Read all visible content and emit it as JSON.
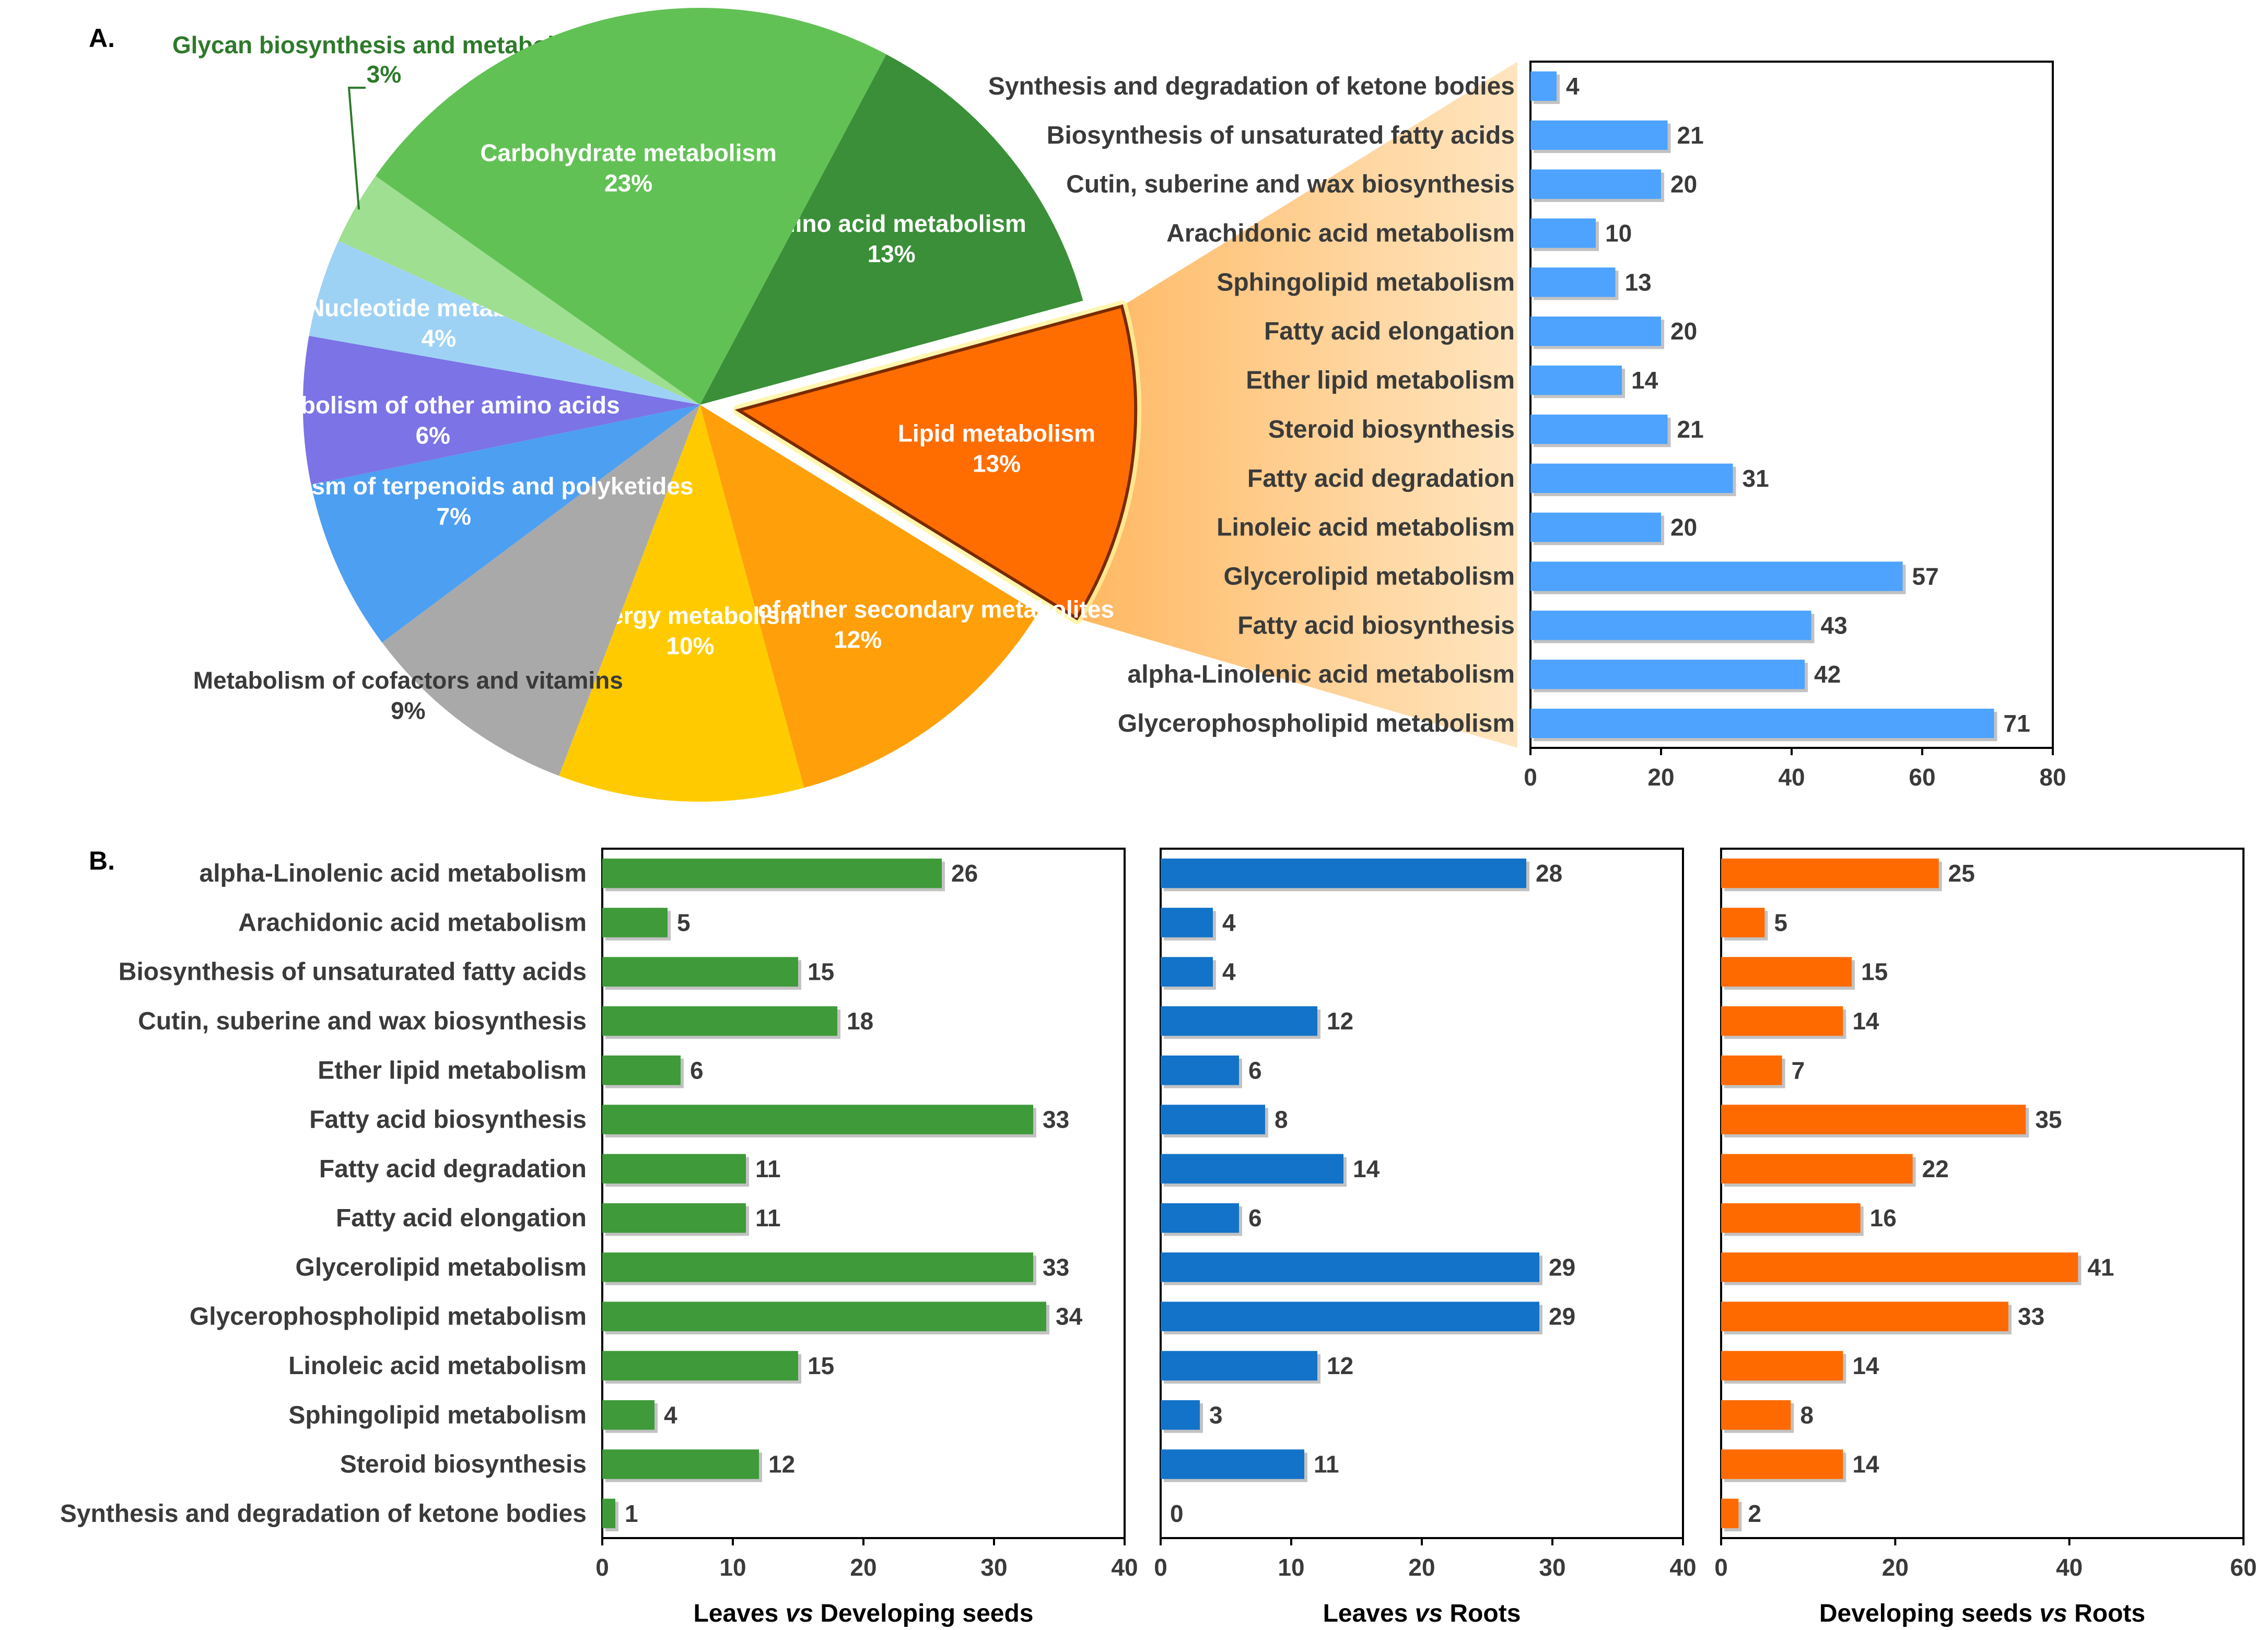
{
  "panel_labels": {
    "a": "A.",
    "b": "B."
  },
  "colors": {
    "green_dark": "#3a8f38",
    "green_mid": "#62c155",
    "green_light": "#9fdf91",
    "blue_light": "#9ed2f5",
    "purple": "#7b73e6",
    "blue_mid": "#4d9ff2",
    "gray": "#a9a9a9",
    "yellow": "#ffcb00",
    "orange_mid": "#ff9f0a",
    "orange_dark": "#ff6d00",
    "bar_blue_light": "#4da3ff",
    "bar_green": "#3f9a3a",
    "bar_blue": "#1273c9",
    "bar_orange": "#ff6a00",
    "text_dark": "#3a3a3a",
    "glycan_label": "#2e7a2b"
  },
  "chart_data": [
    {
      "id": "pie",
      "type": "pie",
      "title": "",
      "slices": [
        {
          "label": "Amino acid metabolism",
          "percent": "13%",
          "value": 13,
          "color": "#3a8f38",
          "text_color": "#ffffff"
        },
        {
          "label": "Lipid metabolism",
          "percent": "13%",
          "value": 13,
          "color": "#ff6d00",
          "text_color": "#ffffff",
          "exploded": true
        },
        {
          "label": "Biosynthesis of other secondary metabolites",
          "percent": "12%",
          "value": 12,
          "color": "#ff9f0a",
          "text_color": "#ffffff"
        },
        {
          "label": "Energy metabolism",
          "percent": "10%",
          "value": 10,
          "color": "#ffcb00",
          "text_color": "#ffffff"
        },
        {
          "label": "Metabolism of cofactors and vitamins",
          "percent": "9%",
          "value": 9,
          "color": "#a9a9a9",
          "text_color": "#3a3a3a"
        },
        {
          "label": "Metabolism of terpenoids and polyketides",
          "percent": "7%",
          "value": 7,
          "color": "#4d9ff2",
          "text_color": "#ffffff"
        },
        {
          "label": "Metabolism of other amino acids",
          "percent": "6%",
          "value": 6,
          "color": "#7b73e6",
          "text_color": "#ffffff"
        },
        {
          "label": "Nucleotide metabolism",
          "percent": "4%",
          "value": 4,
          "color": "#9ed2f5",
          "text_color": "#ffffff"
        },
        {
          "label": "Glycan biosynthesis and metabolism",
          "percent": "3%",
          "value": 3,
          "color": "#9fdf91",
          "text_color": "#2e7a2b"
        },
        {
          "label": "Carbohydrate metabolism",
          "percent": "23%",
          "value": 23,
          "color": "#62c155",
          "text_color": "#ffffff"
        }
      ]
    },
    {
      "id": "lipid_detail",
      "type": "bar",
      "orientation": "horizontal",
      "title": "",
      "xlabel": "",
      "ylabel": "",
      "categories": [
        "Synthesis and degradation of ketone bodies",
        "Biosynthesis of unsaturated fatty acids",
        "Cutin, suberine and wax biosynthesis",
        "Arachidonic acid metabolism",
        "Sphingolipid metabolism",
        "Fatty acid elongation",
        "Ether lipid metabolism",
        "Steroid biosynthesis",
        "Fatty acid degradation",
        "Linoleic acid metabolism",
        "Glycerolipid metabolism",
        "Fatty acid biosynthesis",
        "alpha-Linolenic acid metabolism",
        "Glycerophospholipid metabolism"
      ],
      "values": [
        4,
        21,
        20,
        10,
        13,
        20,
        14,
        21,
        31,
        20,
        57,
        43,
        42,
        71
      ],
      "xlim": [
        0,
        80
      ],
      "xticks": [
        0,
        20,
        40,
        60,
        80
      ],
      "bar_color": "#4da3ff"
    },
    {
      "id": "leaves_vs_seeds",
      "type": "bar",
      "orientation": "horizontal",
      "title": "",
      "xlabel_parts": [
        "Leaves ",
        "vs",
        " Developing seeds"
      ],
      "categories": [
        "alpha-Linolenic acid metabolism",
        "Arachidonic acid metabolism",
        "Biosynthesis of unsaturated fatty acids",
        "Cutin, suberine and wax biosynthesis",
        "Ether lipid metabolism",
        "Fatty acid biosynthesis",
        "Fatty acid degradation",
        "Fatty acid elongation",
        "Glycerolipid metabolism",
        "Glycerophospholipid metabolism",
        "Linoleic acid metabolism",
        "Sphingolipid metabolism",
        "Steroid biosynthesis",
        "Synthesis and degradation of ketone bodies"
      ],
      "values": [
        26,
        5,
        15,
        18,
        6,
        33,
        11,
        11,
        33,
        34,
        15,
        4,
        12,
        1
      ],
      "xlim": [
        0,
        40
      ],
      "xticks": [
        0,
        10,
        20,
        30,
        40
      ],
      "bar_color": "#3f9a3a"
    },
    {
      "id": "leaves_vs_roots",
      "type": "bar",
      "orientation": "horizontal",
      "title": "",
      "xlabel_parts": [
        "Leaves ",
        "vs",
        " Roots"
      ],
      "values": [
        28,
        4,
        4,
        12,
        6,
        8,
        14,
        6,
        29,
        29,
        12,
        3,
        11,
        0
      ],
      "xlim": [
        0,
        40
      ],
      "xticks": [
        0,
        10,
        20,
        30,
        40
      ],
      "bar_color": "#1273c9"
    },
    {
      "id": "seeds_vs_roots",
      "type": "bar",
      "orientation": "horizontal",
      "title": "",
      "xlabel_parts": [
        "Developing seeds ",
        "vs",
        " Roots"
      ],
      "values": [
        25,
        5,
        15,
        14,
        7,
        35,
        22,
        16,
        41,
        33,
        14,
        8,
        14,
        2
      ],
      "xlim": [
        0,
        60
      ],
      "xticks": [
        0,
        20,
        40,
        60
      ],
      "bar_color": "#ff6a00"
    }
  ]
}
